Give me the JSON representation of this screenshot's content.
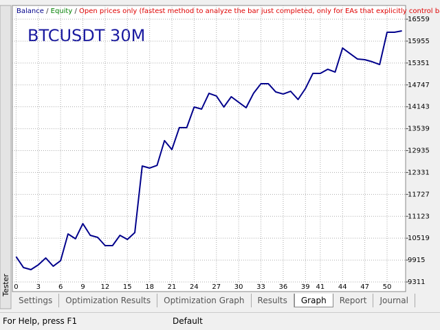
{
  "chart_data": {
    "type": "line",
    "title": "BTCUSDT 30M",
    "separator": "/",
    "equity_label": "Equity",
    "subtitle": "Open prices only (fastest method to analyze the bar just completed, only for EAs that explicitly control bar opening)",
    "x": [
      0,
      1,
      2,
      3,
      4,
      5,
      6,
      7,
      8,
      9,
      10,
      11,
      12,
      13,
      14,
      15,
      16,
      17,
      18,
      19,
      20,
      21,
      22,
      23,
      24,
      25,
      26,
      27,
      28,
      29,
      30,
      31,
      32,
      33,
      34,
      35,
      36,
      37,
      38,
      39,
      40,
      41,
      42,
      43,
      44,
      45,
      46,
      47,
      48,
      49,
      50,
      51,
      52
    ],
    "series": [
      {
        "name": "Balance",
        "color": "#00008b",
        "values": [
          10011,
          9708,
          9652,
          9784,
          9973,
          9746,
          9898,
          10636,
          10503,
          10920,
          10598,
          10541,
          10314,
          10314,
          10598,
          10484,
          10674,
          12509,
          12453,
          12528,
          13210,
          12964,
          13569,
          13569,
          14137,
          14080,
          14515,
          14440,
          14137,
          14421,
          14269,
          14118,
          14515,
          14780,
          14780,
          14553,
          14496,
          14572,
          14345,
          14648,
          15064,
          15064,
          15178,
          15102,
          15764,
          15613,
          15462,
          15443,
          15386,
          15310,
          16200,
          16200,
          16238
        ]
      }
    ],
    "xlim": [
      -0.5,
      52.5
    ],
    "ylim": [
      9046,
      16938
    ],
    "xticks": [
      0,
      3,
      6,
      9,
      12,
      15,
      18,
      21,
      24,
      27,
      30,
      33,
      36,
      39,
      41,
      44,
      47,
      50
    ],
    "yticks": [
      9311,
      9915,
      10519,
      11123,
      11727,
      12331,
      12935,
      13539,
      14143,
      14747,
      15351,
      15955,
      16559
    ],
    "grid": true
  },
  "side_tab": "Tester",
  "tabs": [
    "Settings",
    "Optimization Results",
    "Optimization Graph",
    "Results",
    "Graph",
    "Report",
    "Journal"
  ],
  "active_tab": 4,
  "status": {
    "help": "For Help, press F1",
    "profile": "Default"
  }
}
